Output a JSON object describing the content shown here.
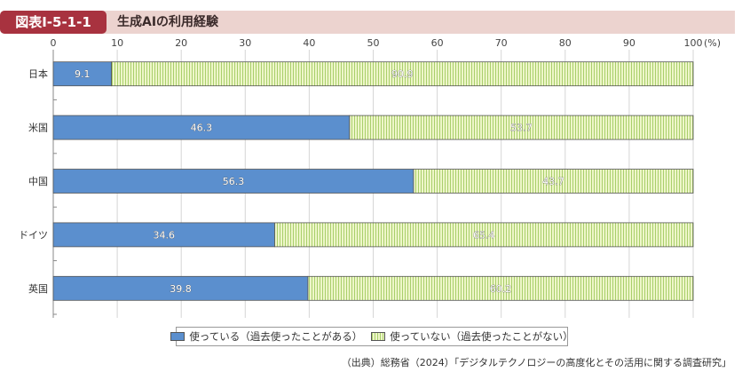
{
  "header": {
    "figure_label": "図表Ⅰ-5-1-1",
    "figure_title": "生成AIの利用経験"
  },
  "colors": {
    "header_label_bg": "#a8323f",
    "header_bg": "#ecd3cf",
    "used": "#5b8fce",
    "not_used": "#eef6c9",
    "not_used_stripe": "#a9cf6b"
  },
  "chart_data": {
    "type": "bar",
    "orientation": "horizontal",
    "stacked": true,
    "categories": [
      "日本",
      "米国",
      "中国",
      "ドイツ",
      "英国"
    ],
    "series": [
      {
        "name": "使っている（過去使ったことがある）",
        "values": [
          9.1,
          46.3,
          56.3,
          34.6,
          39.8
        ],
        "labels": [
          "9.1",
          "46.3",
          "56.3",
          "34.6",
          "39.8"
        ]
      },
      {
        "name": "使っていない（過去使ったことがない）",
        "values": [
          90.9,
          53.7,
          43.7,
          65.4,
          60.2
        ],
        "labels": [
          "90.9",
          "53.7",
          "43.7",
          "65.4",
          "60.2"
        ]
      }
    ],
    "xlim": [
      0,
      100
    ],
    "xticks": [
      0,
      10,
      20,
      30,
      40,
      50,
      60,
      70,
      80,
      90,
      100
    ],
    "unit_label": "(%)",
    "grid": true,
    "legend_position": "bottom"
  },
  "source": "（出典）総務省（2024）「デジタルテクノロジーの高度化とその活用に関する調査研究」"
}
